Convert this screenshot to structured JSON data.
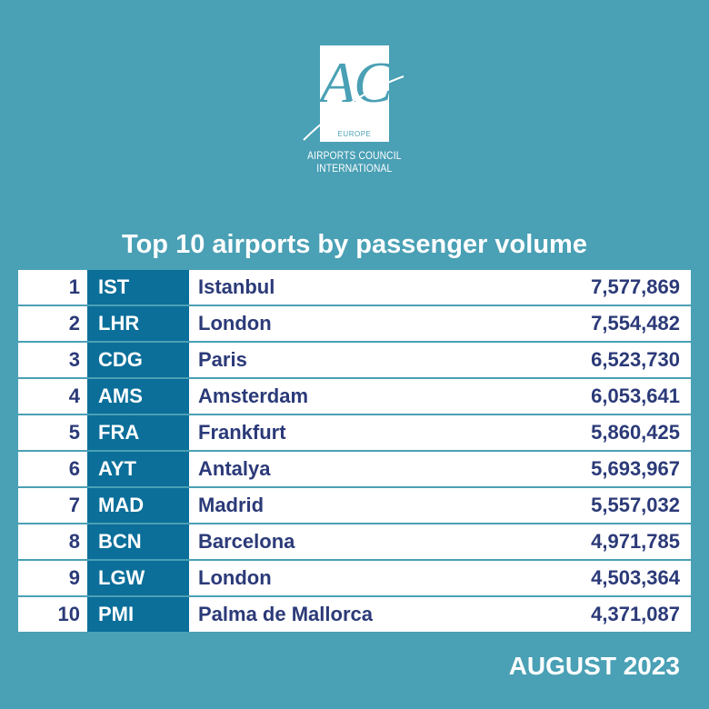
{
  "logo": {
    "letters": "ACI",
    "region": "EUROPE",
    "line1": "AIRPORTS COUNCIL",
    "line2": "INTERNATIONAL"
  },
  "title": "Top 10 airports by passenger volume",
  "rows": [
    {
      "rank": "1",
      "code": "IST",
      "city": "Istanbul",
      "passengers": "7,577,869"
    },
    {
      "rank": "2",
      "code": "LHR",
      "city": "London",
      "passengers": "7,554,482"
    },
    {
      "rank": "3",
      "code": "CDG",
      "city": "Paris",
      "passengers": "6,523,730"
    },
    {
      "rank": "4",
      "code": "AMS",
      "city": "Amsterdam",
      "passengers": "6,053,641"
    },
    {
      "rank": "5",
      "code": "FRA",
      "city": "Frankfurt",
      "passengers": "5,860,425"
    },
    {
      "rank": "6",
      "code": "AYT",
      "city": "Antalya",
      "passengers": "5,693,967"
    },
    {
      "rank": "7",
      "code": "MAD",
      "city": "Madrid",
      "passengers": "5,557,032"
    },
    {
      "rank": "8",
      "code": "BCN",
      "city": "Barcelona",
      "passengers": "4,971,785"
    },
    {
      "rank": "9",
      "code": "LGW",
      "city": "London",
      "passengers": "4,503,364"
    },
    {
      "rank": "10",
      "code": "PMI",
      "city": "Palma de Mallorca",
      "passengers": "4,371,087"
    }
  ],
  "period": "AUGUST 2023",
  "colors": {
    "background": "#4aa0b5",
    "code_cell": "#0b6f9a",
    "text_dark": "#2b3a78"
  }
}
